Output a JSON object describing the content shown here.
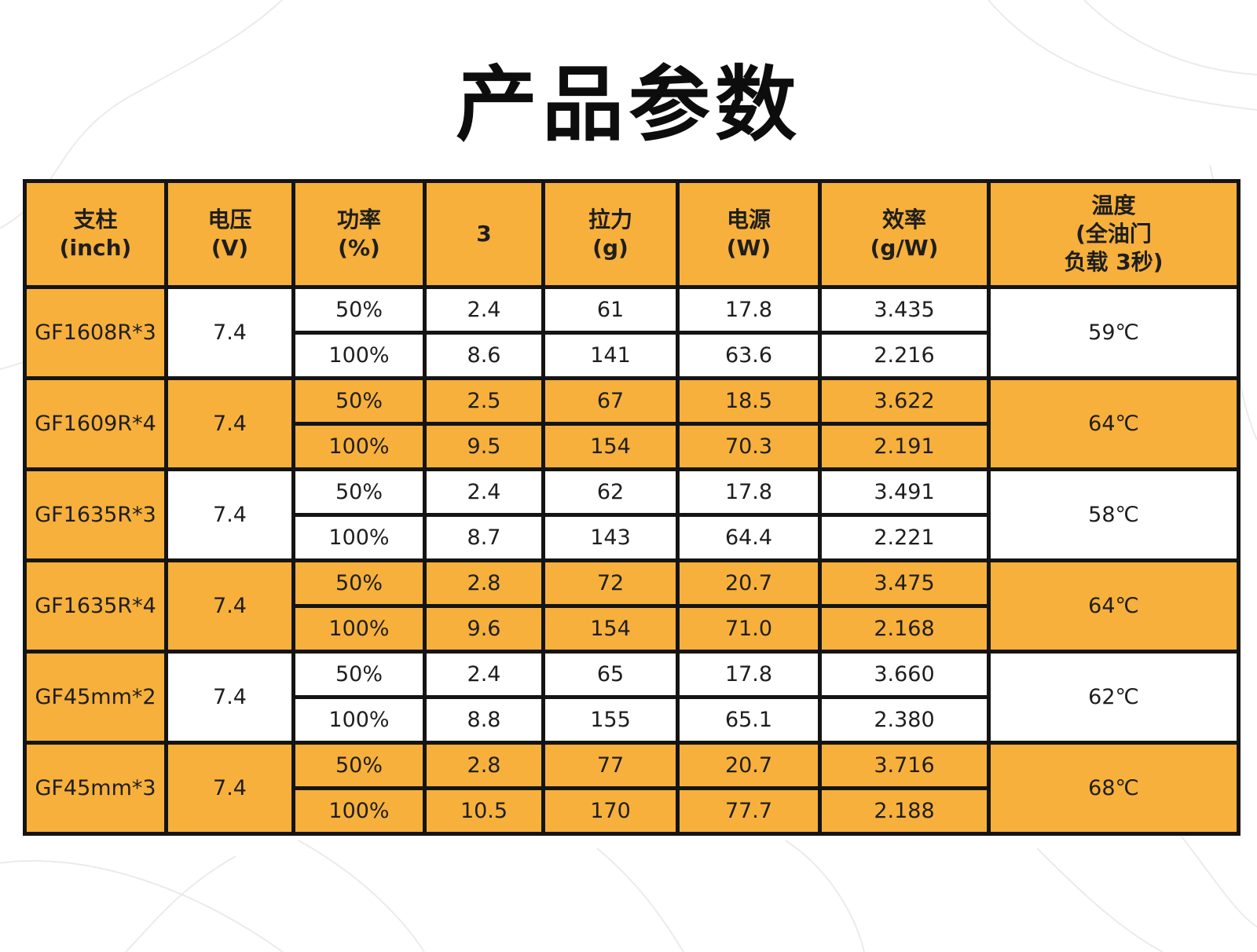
{
  "title": "产品参数",
  "colors": {
    "header_bg": "#f7b03b",
    "stripe_bg": "#f7b03b",
    "border": "#141414",
    "background": "#ffffff"
  },
  "headers": [
    [
      "支柱",
      "(inch)"
    ],
    [
      "电压",
      "(V)"
    ],
    [
      "功率",
      "(%)"
    ],
    [
      "3"
    ],
    [
      "拉力",
      "(g)"
    ],
    [
      "电源",
      "(W)"
    ],
    [
      "效率",
      "(g/W)"
    ],
    [
      "温度",
      "(全油门",
      "负载 3秒)"
    ]
  ],
  "rows": [
    {
      "model": "GF1608R*3",
      "voltage": "7.4",
      "temperature": "59℃",
      "entries": [
        {
          "power": "50%",
          "value_3": "2.4",
          "pull": "61",
          "watt": "17.8",
          "efficiency": "3.435"
        },
        {
          "power": "100%",
          "value_3": "8.6",
          "pull": "141",
          "watt": "63.6",
          "efficiency": "2.216"
        }
      ]
    },
    {
      "model": "GF1609R*4",
      "voltage": "7.4",
      "temperature": "64℃",
      "entries": [
        {
          "power": "50%",
          "value_3": "2.5",
          "pull": "67",
          "watt": "18.5",
          "efficiency": "3.622"
        },
        {
          "power": "100%",
          "value_3": "9.5",
          "pull": "154",
          "watt": "70.3",
          "efficiency": "2.191"
        }
      ]
    },
    {
      "model": "GF1635R*3",
      "voltage": "7.4",
      "temperature": "58℃",
      "entries": [
        {
          "power": "50%",
          "value_3": "2.4",
          "pull": "62",
          "watt": "17.8",
          "efficiency": "3.491"
        },
        {
          "power": "100%",
          "value_3": "8.7",
          "pull": "143",
          "watt": "64.4",
          "efficiency": "2.221"
        }
      ]
    },
    {
      "model": "GF1635R*4",
      "voltage": "7.4",
      "temperature": "64℃",
      "entries": [
        {
          "power": "50%",
          "value_3": "2.8",
          "pull": "72",
          "watt": "20.7",
          "efficiency": "3.475"
        },
        {
          "power": "100%",
          "value_3": "9.6",
          "pull": "154",
          "watt": "71.0",
          "efficiency": "2.168"
        }
      ]
    },
    {
      "model": "GF45mm*2",
      "voltage": "7.4",
      "temperature": "62℃",
      "entries": [
        {
          "power": "50%",
          "value_3": "2.4",
          "pull": "65",
          "watt": "17.8",
          "efficiency": "3.660"
        },
        {
          "power": "100%",
          "value_3": "8.8",
          "pull": "155",
          "watt": "65.1",
          "efficiency": "2.380"
        }
      ]
    },
    {
      "model": "GF45mm*3",
      "voltage": "7.4",
      "temperature": "68℃",
      "entries": [
        {
          "power": "50%",
          "value_3": "2.8",
          "pull": "77",
          "watt": "20.7",
          "efficiency": "3.716"
        },
        {
          "power": "100%",
          "value_3": "10.5",
          "pull": "170",
          "watt": "77.7",
          "efficiency": "2.188"
        }
      ]
    }
  ]
}
